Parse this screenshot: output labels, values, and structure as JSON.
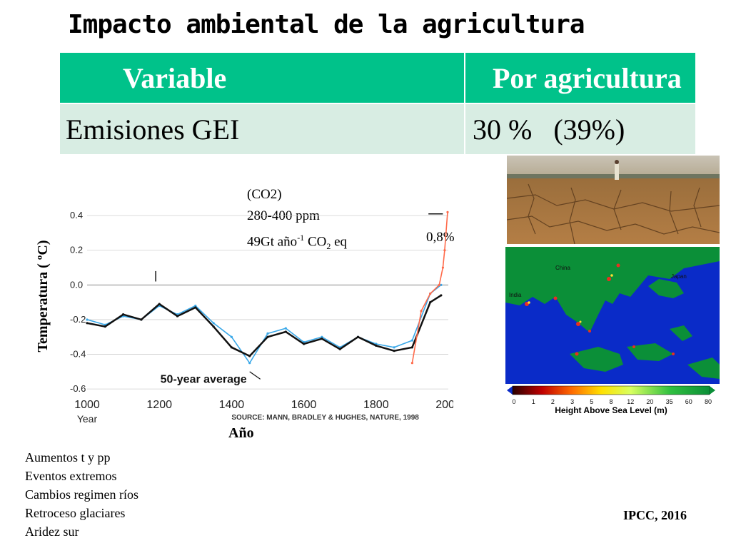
{
  "title": "Impacto ambiental de la agricultura",
  "table": {
    "headers": [
      "Variable",
      "Por agricultura"
    ],
    "row": {
      "label": "Emisiones GEI",
      "value_main": "30 %",
      "value_paren": "(39%)"
    }
  },
  "annotation": {
    "line1": "(CO2)",
    "line2": "280-400 ppm",
    "line3_a": "49Gt año",
    "line3_sup": "-1",
    "line3_b": " CO",
    "line3_sub": "2",
    "line3_c": " eq",
    "pct": "0,8%"
  },
  "axis_labels": {
    "y": "Temperatura ( ºC)",
    "x": "Año"
  },
  "chart_data": {
    "type": "line",
    "x_label_inner": "Year",
    "y_ticks": [
      0.4,
      0.2,
      0.0,
      -0.2,
      -0.4,
      -0.6
    ],
    "y_tick_labels": [
      "0.4",
      "0.2",
      "0.0",
      "-0.2",
      "-0.4",
      "-0.6"
    ],
    "x_ticks": [
      1000,
      1200,
      1400,
      1600,
      1800,
      2000
    ],
    "x_tick_labels": [
      "1000",
      "1200",
      "1400",
      "1600",
      "1800",
      "2000"
    ],
    "xlim": [
      1000,
      2000
    ],
    "ylim": [
      -0.62,
      0.45
    ],
    "annotation_label": "50-year average",
    "source_text": "SOURCE: MANN, BRADLEY & HUGHES, NATURE, 1998",
    "series": [
      {
        "color": "#3aa8e8",
        "x": [
          1000,
          1050,
          1100,
          1150,
          1200,
          1250,
          1300,
          1350,
          1400,
          1450,
          1500,
          1550,
          1600,
          1650,
          1700,
          1750,
          1800,
          1850,
          1900,
          1950,
          1980
        ],
        "values": [
          -0.2,
          -0.23,
          -0.18,
          -0.2,
          -0.12,
          -0.17,
          -0.12,
          -0.22,
          -0.3,
          -0.45,
          -0.28,
          -0.25,
          -0.33,
          -0.3,
          -0.36,
          -0.3,
          -0.34,
          -0.36,
          -0.32,
          -0.05,
          0.0
        ]
      },
      {
        "color": "#111111",
        "x": [
          1000,
          1050,
          1100,
          1150,
          1200,
          1250,
          1300,
          1350,
          1400,
          1450,
          1500,
          1550,
          1600,
          1650,
          1700,
          1750,
          1800,
          1850,
          1900,
          1950,
          1980
        ],
        "values": [
          -0.22,
          -0.24,
          -0.17,
          -0.2,
          -0.11,
          -0.18,
          -0.13,
          -0.24,
          -0.36,
          -0.41,
          -0.3,
          -0.27,
          -0.34,
          -0.31,
          -0.37,
          -0.3,
          -0.35,
          -0.38,
          -0.36,
          -0.1,
          -0.06
        ]
      },
      {
        "color": "#ff6a4a",
        "x": [
          1900,
          1925,
          1950,
          1975,
          1985,
          1990,
          1998
        ],
        "values": [
          -0.45,
          -0.15,
          -0.05,
          0.0,
          0.1,
          0.2,
          0.42
        ]
      }
    ]
  },
  "effects": [
    "Aumentos t y pp",
    "Eventos extremos",
    "Cambios regimen ríos",
    "Retroceso glaciares",
    "Aridez sur"
  ],
  "source": "IPCC, 2016",
  "map": {
    "labels": [
      "China",
      "India",
      "Japan"
    ],
    "legend_title": "Height Above Sea Level (m)",
    "legend_ticks": [
      "0",
      "1",
      "2",
      "3",
      "5",
      "8",
      "12",
      "20",
      "35",
      "60",
      "80"
    ]
  },
  "colors": {
    "table_header": "#00c28a",
    "table_row": "#d8ede3",
    "ocean": "#0a2bc8",
    "land": "#0b8f38"
  }
}
